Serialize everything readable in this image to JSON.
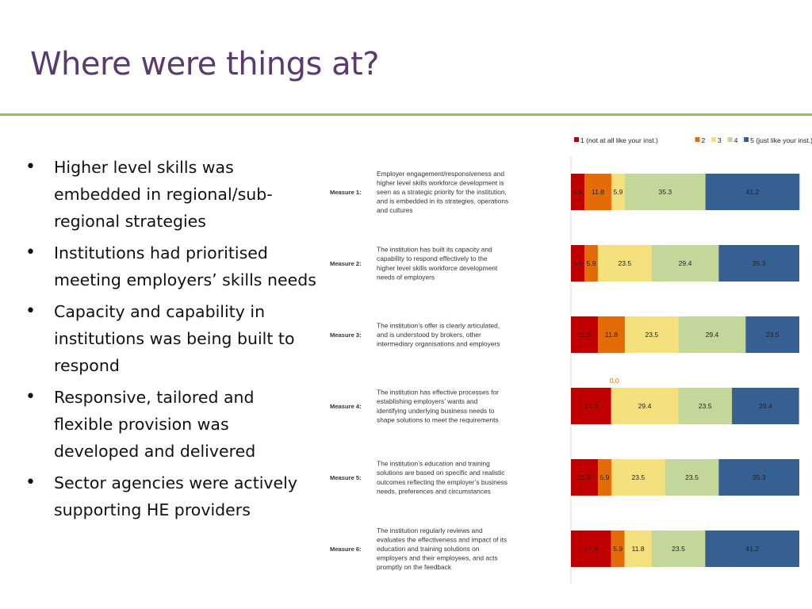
{
  "slide": {
    "title": "Where were things at?",
    "bullets": [
      "Higher level skills was embedded in regional/sub-regional strategies",
      "Institutions had prioritised meeting employers’ skills needs",
      "Capacity and capability in institutions was being built to respond",
      "Responsive, tailored and flexible provision was developed and delivered",
      "Sector agencies were actively supporting HE providers"
    ]
  },
  "chart_data": {
    "type": "bar",
    "orientation": "horizontal",
    "stacked": true,
    "percent": true,
    "legend_position": "top-right",
    "series": [
      {
        "name": "1 (not at all like your inst.)",
        "color": "#c00000",
        "values": [
          5.9,
          5.9,
          11.8,
          17.6,
          11.8,
          17.6
        ]
      },
      {
        "name": "2",
        "color": "#e36c09",
        "values": [
          11.8,
          5.9,
          11.8,
          0.0,
          5.9,
          5.9
        ]
      },
      {
        "name": "3",
        "color": "#f4e07c",
        "values": [
          5.9,
          23.5,
          23.5,
          29.4,
          23.5,
          11.8
        ]
      },
      {
        "name": "4",
        "color": "#c4d79b",
        "values": [
          35.3,
          29.4,
          29.4,
          23.5,
          23.5,
          23.5
        ]
      },
      {
        "name": "5 (just like your inst.)",
        "color": "#366092",
        "values": [
          41.2,
          35.3,
          23.5,
          29.4,
          35.3,
          41.2
        ]
      }
    ],
    "categories": [
      {
        "measure": "Measure 1:",
        "lines": [
          "Employer engagement/responsiveness and",
          "higher level skills workforce development is",
          "seen as a strategic priority for the institution,",
          "and is embedded in its strategies, operations",
          "and cultures"
        ]
      },
      {
        "measure": "Measure 2:",
        "lines": [
          "The institution has built its capacity and",
          "capability to respond effectively to the",
          "higher level skills workforce development",
          "needs of employers"
        ]
      },
      {
        "measure": "Measure 3:",
        "lines": [
          "The institution’s offer is clearly articulated,",
          "and is understood by brokers, other",
          "intermediary organisations and employers"
        ]
      },
      {
        "measure": "Measure 4:",
        "lines": [
          "The institution has effective processes for",
          "establishing employers’ wants and",
          "identifying underlying business needs to",
          "shape solutions to meet the requirements"
        ]
      },
      {
        "measure": "Measure 5:",
        "lines": [
          "The institution’s education and training",
          "solutions are based on specific and realistic",
          "outcomes reflecting the employer’s business",
          "needs, preferences and circumstances"
        ]
      },
      {
        "measure": "Measure 6:",
        "lines": [
          "The institution regularly reviews and",
          "evaluates the effectiveness and impact of its",
          "education and training solutions on",
          "employers and their employees, and acts",
          "promptly on the feedback"
        ]
      }
    ],
    "xlim": [
      0,
      100
    ]
  }
}
